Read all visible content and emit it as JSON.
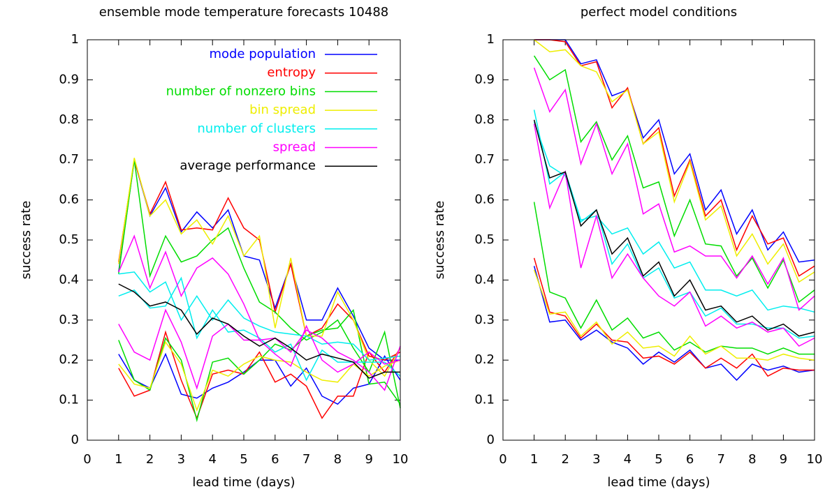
{
  "chart_data": [
    {
      "type": "line",
      "title": "ensemble mode temperature forecasts 10488",
      "xlabel": "lead time (days)",
      "ylabel": "success rate",
      "xlim": [
        0,
        10
      ],
      "ylim": [
        0,
        1
      ],
      "xticks": [
        0,
        1,
        2,
        3,
        4,
        5,
        6,
        7,
        8,
        9,
        10
      ],
      "yticks": [
        0,
        0.1,
        0.2,
        0.3,
        0.4,
        0.5,
        0.6,
        0.7,
        0.8,
        0.9,
        1
      ],
      "legend": "top-right",
      "x": [
        1,
        1.5,
        2,
        2.5,
        3,
        3.5,
        4,
        4.5,
        5,
        5.5,
        6,
        6.5,
        7,
        7.5,
        8,
        8.5,
        9,
        9.5,
        10
      ],
      "series": [
        {
          "name": "mode population",
          "color": "#0000ff",
          "values": [
            0.42,
            0.7,
            0.56,
            0.63,
            0.52,
            0.57,
            0.53,
            0.575,
            0.46,
            0.45,
            0.33,
            0.44,
            0.3,
            0.3,
            0.38,
            0.31,
            0.23,
            0.2,
            0.2
          ]
        },
        {
          "color": "#0000ff",
          "values": [
            0.215,
            0.15,
            0.13,
            0.215,
            0.115,
            0.105,
            0.13,
            0.145,
            0.17,
            0.2,
            0.2,
            0.135,
            0.18,
            0.11,
            0.09,
            0.13,
            0.14,
            0.21,
            0.15
          ]
        },
        {
          "name": "entropy",
          "color": "#ff0000",
          "values": [
            0.445,
            0.7,
            0.565,
            0.645,
            0.525,
            0.53,
            0.525,
            0.605,
            0.53,
            0.5,
            0.32,
            0.44,
            0.26,
            0.28,
            0.34,
            0.3,
            0.21,
            0.2,
            0.22
          ]
        },
        {
          "color": "#ff0000",
          "values": [
            0.18,
            0.11,
            0.125,
            0.27,
            0.15,
            0.055,
            0.165,
            0.175,
            0.165,
            0.22,
            0.145,
            0.165,
            0.135,
            0.055,
            0.11,
            0.11,
            0.22,
            0.17,
            0.23
          ]
        },
        {
          "name": "number of nonzero bins",
          "color": "#00dd00",
          "values": [
            0.415,
            0.7,
            0.41,
            0.51,
            0.445,
            0.46,
            0.5,
            0.53,
            0.43,
            0.345,
            0.32,
            0.28,
            0.25,
            0.27,
            0.3,
            0.23,
            0.17,
            0.27,
            0.08
          ]
        },
        {
          "color": "#00dd00",
          "values": [
            0.25,
            0.15,
            0.125,
            0.255,
            0.2,
            0.05,
            0.195,
            0.205,
            0.165,
            0.2,
            0.24,
            0.225,
            0.26,
            0.275,
            0.28,
            0.325,
            0.14,
            0.145,
            0.09
          ]
        },
        {
          "name": "bin spread",
          "color": "#eeee00",
          "values": [
            0.44,
            0.705,
            0.56,
            0.6,
            0.515,
            0.55,
            0.49,
            0.56,
            0.46,
            0.51,
            0.28,
            0.455,
            0.26,
            0.26,
            0.37,
            0.3,
            0.2,
            0.16,
            0.23
          ]
        },
        {
          "color": "#eeee00",
          "values": [
            0.19,
            0.14,
            0.13,
            0.245,
            0.19,
            0.075,
            0.175,
            0.16,
            0.19,
            0.21,
            0.2,
            0.195,
            0.17,
            0.15,
            0.145,
            0.19,
            0.16,
            0.185,
            0.2
          ]
        },
        {
          "name": "number of clusters",
          "color": "#00eeee",
          "values": [
            0.415,
            0.42,
            0.37,
            0.395,
            0.3,
            0.36,
            0.3,
            0.35,
            0.305,
            0.285,
            0.27,
            0.265,
            0.26,
            0.24,
            0.245,
            0.24,
            0.2,
            0.205,
            0.21
          ]
        },
        {
          "color": "#00eeee",
          "values": [
            0.36,
            0.375,
            0.33,
            0.335,
            0.405,
            0.255,
            0.325,
            0.27,
            0.275,
            0.255,
            0.22,
            0.24,
            0.15,
            0.225,
            0.195,
            0.195,
            0.195,
            0.195,
            0.16
          ]
        },
        {
          "name": "spread",
          "color": "#ff00ff",
          "values": [
            0.42,
            0.51,
            0.38,
            0.47,
            0.36,
            0.43,
            0.455,
            0.415,
            0.34,
            0.25,
            0.255,
            0.22,
            0.275,
            0.255,
            0.22,
            0.2,
            0.17,
            0.125,
            0.235
          ]
        },
        {
          "color": "#ff00ff",
          "values": [
            0.29,
            0.22,
            0.2,
            0.325,
            0.245,
            0.13,
            0.26,
            0.29,
            0.25,
            0.25,
            0.215,
            0.185,
            0.285,
            0.2,
            0.17,
            0.19,
            0.22,
            0.19,
            0.2
          ]
        },
        {
          "name": "average performance",
          "color": "#000000",
          "values": [
            0.39,
            0.37,
            0.335,
            0.345,
            0.325,
            0.265,
            0.305,
            0.29,
            0.26,
            0.235,
            0.255,
            0.23,
            0.2,
            0.215,
            0.205,
            0.195,
            0.155,
            0.17,
            0.17
          ]
        }
      ]
    },
    {
      "type": "line",
      "title": "perfect model conditions",
      "xlabel": "lead time (days)",
      "ylabel": "success rate",
      "xlim": [
        0,
        10
      ],
      "ylim": [
        0,
        1
      ],
      "xticks": [
        0,
        1,
        2,
        3,
        4,
        5,
        6,
        7,
        8,
        9,
        10
      ],
      "yticks": [
        0,
        0.1,
        0.2,
        0.3,
        0.4,
        0.5,
        0.6,
        0.7,
        0.8,
        0.9,
        1
      ],
      "x": [
        1,
        1.5,
        2,
        2.5,
        3,
        3.5,
        4,
        4.5,
        5,
        5.5,
        6,
        6.5,
        7,
        7.5,
        8,
        8.5,
        9,
        9.5,
        10
      ],
      "series": [
        {
          "color": "#0000ff",
          "values": [
            1.0,
            1.0,
            1.0,
            0.94,
            0.95,
            0.86,
            0.875,
            0.755,
            0.8,
            0.665,
            0.715,
            0.575,
            0.625,
            0.515,
            0.575,
            0.475,
            0.52,
            0.445,
            0.45
          ]
        },
        {
          "color": "#0000ff",
          "values": [
            0.435,
            0.295,
            0.3,
            0.25,
            0.275,
            0.245,
            0.23,
            0.19,
            0.22,
            0.195,
            0.225,
            0.18,
            0.19,
            0.15,
            0.19,
            0.175,
            0.185,
            0.17,
            0.175
          ]
        },
        {
          "color": "#ff0000",
          "values": [
            1.0,
            1.0,
            0.995,
            0.935,
            0.945,
            0.83,
            0.88,
            0.74,
            0.78,
            0.61,
            0.7,
            0.56,
            0.6,
            0.475,
            0.56,
            0.49,
            0.505,
            0.41,
            0.435
          ]
        },
        {
          "color": "#ff0000",
          "values": [
            0.455,
            0.32,
            0.31,
            0.255,
            0.29,
            0.25,
            0.245,
            0.205,
            0.21,
            0.19,
            0.22,
            0.18,
            0.205,
            0.18,
            0.215,
            0.16,
            0.18,
            0.175,
            0.175
          ]
        },
        {
          "color": "#00dd00",
          "values": [
            0.96,
            0.9,
            0.925,
            0.745,
            0.795,
            0.7,
            0.76,
            0.63,
            0.645,
            0.51,
            0.6,
            0.49,
            0.485,
            0.41,
            0.455,
            0.38,
            0.45,
            0.345,
            0.375
          ]
        },
        {
          "color": "#00dd00",
          "values": [
            0.595,
            0.37,
            0.355,
            0.28,
            0.35,
            0.275,
            0.305,
            0.255,
            0.27,
            0.225,
            0.245,
            0.22,
            0.235,
            0.23,
            0.23,
            0.215,
            0.23,
            0.215,
            0.215
          ]
        },
        {
          "color": "#eeee00",
          "values": [
            1.0,
            0.97,
            0.975,
            0.935,
            0.92,
            0.845,
            0.875,
            0.74,
            0.77,
            0.595,
            0.695,
            0.55,
            0.585,
            0.46,
            0.515,
            0.44,
            0.49,
            0.395,
            0.42
          ]
        },
        {
          "color": "#eeee00",
          "values": [
            0.425,
            0.315,
            0.32,
            0.26,
            0.295,
            0.24,
            0.27,
            0.23,
            0.235,
            0.21,
            0.26,
            0.215,
            0.235,
            0.205,
            0.205,
            0.2,
            0.215,
            0.205,
            0.2
          ]
        },
        {
          "color": "#00eeee",
          "values": [
            0.825,
            0.64,
            0.67,
            0.55,
            0.56,
            0.515,
            0.53,
            0.465,
            0.495,
            0.43,
            0.445,
            0.375,
            0.375,
            0.36,
            0.375,
            0.325,
            0.335,
            0.33,
            0.32
          ]
        },
        {
          "color": "#00eeee",
          "values": [
            0.795,
            0.685,
            0.66,
            0.545,
            0.575,
            0.44,
            0.49,
            0.405,
            0.43,
            0.355,
            0.37,
            0.31,
            0.33,
            0.29,
            0.29,
            0.28,
            0.28,
            0.255,
            0.26
          ]
        },
        {
          "color": "#ff00ff",
          "values": [
            0.93,
            0.82,
            0.875,
            0.69,
            0.79,
            0.665,
            0.74,
            0.565,
            0.59,
            0.47,
            0.485,
            0.46,
            0.46,
            0.405,
            0.46,
            0.39,
            0.455,
            0.325,
            0.36
          ]
        },
        {
          "color": "#ff00ff",
          "values": [
            0.79,
            0.58,
            0.67,
            0.43,
            0.56,
            0.405,
            0.465,
            0.405,
            0.36,
            0.335,
            0.37,
            0.285,
            0.31,
            0.28,
            0.295,
            0.27,
            0.28,
            0.235,
            0.255
          ]
        },
        {
          "color": "#000000",
          "values": [
            0.8,
            0.655,
            0.67,
            0.535,
            0.575,
            0.465,
            0.505,
            0.41,
            0.445,
            0.36,
            0.4,
            0.325,
            0.335,
            0.295,
            0.31,
            0.275,
            0.29,
            0.26,
            0.27
          ]
        }
      ]
    }
  ]
}
